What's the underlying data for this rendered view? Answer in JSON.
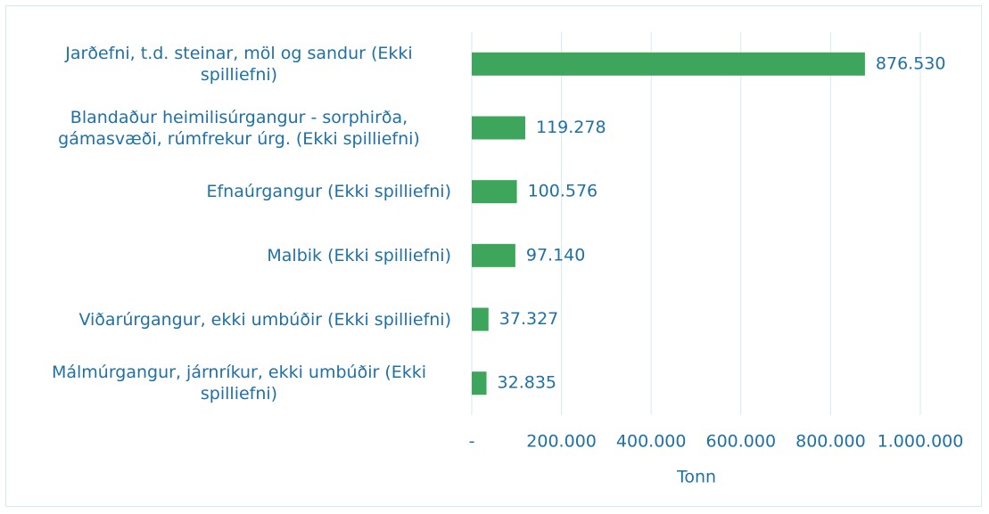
{
  "chart_data": {
    "type": "bar",
    "orientation": "horizontal",
    "categories": [
      "Jarðefni, t.d. steinar, möl og sandur (Ekki spilliefni)",
      "Blandaður heimilisúrgangur - sorphirða, gámasvæði, rúmfrekur úrg. (Ekki spilliefni)",
      "Efnaúrgangur (Ekki spilliefni)",
      "Malbik (Ekki spilliefni)",
      "Viðarúrgangur, ekki umbúðir (Ekki spilliefni)",
      "Málmúrgangur, járnríkur, ekki umbúðir (Ekki spilliefni)"
    ],
    "values": [
      876530,
      119278,
      100576,
      97140,
      37327,
      32835
    ],
    "value_labels": [
      "876.530",
      "119.278",
      "100.576",
      "97.140",
      "37.327",
      "32.835"
    ],
    "color": "#3ea55c",
    "xlabel": "Tonn",
    "xlim": [
      0,
      1000000
    ],
    "xticks": [
      {
        "value": 0,
        "label": "-"
      },
      {
        "value": 200000,
        "label": "200.000"
      },
      {
        "value": 400000,
        "label": "400.000"
      },
      {
        "value": 600000,
        "label": "600.000"
      },
      {
        "value": 800000,
        "label": "800.000"
      },
      {
        "value": 1000000,
        "label": "1.000.000"
      }
    ],
    "grid": true
  }
}
